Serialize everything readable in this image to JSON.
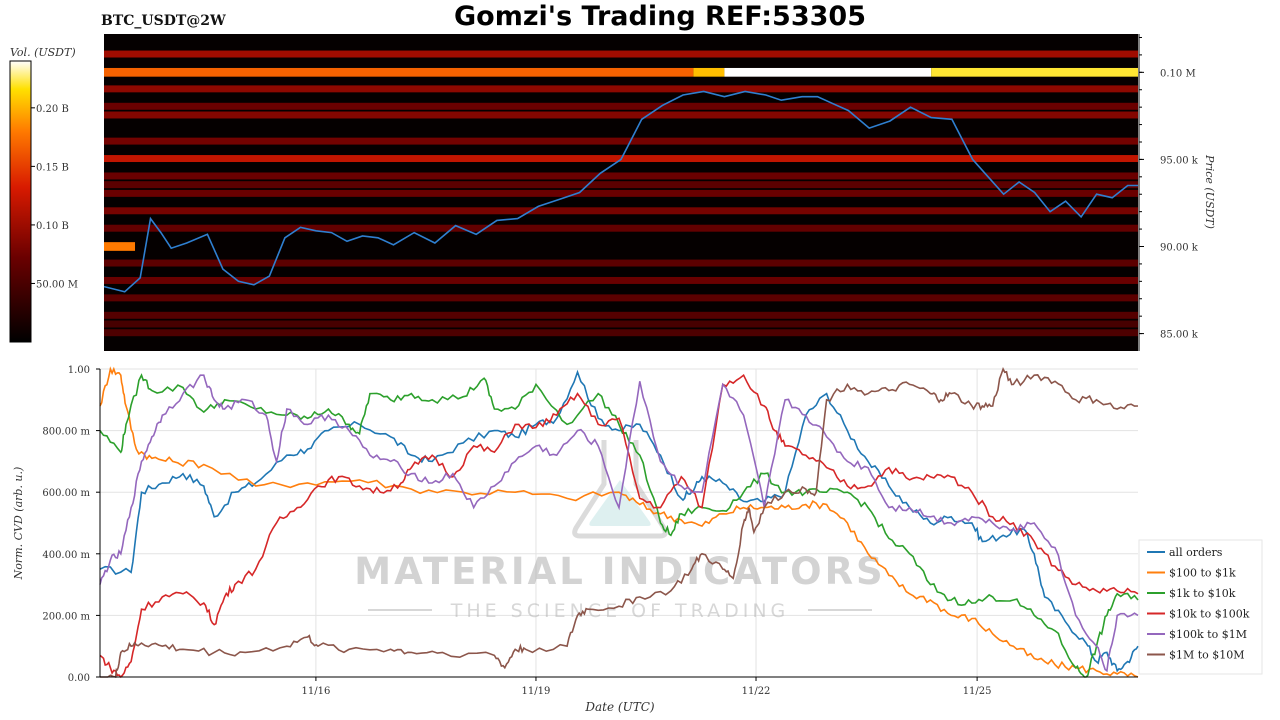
{
  "header": {
    "pair": "BTC_USDT@2W",
    "title": "Gomzi's Trading REF:53305"
  },
  "colors": {
    "heatmap_bg": "#050000",
    "price_line": "#2f7fd0",
    "series": [
      "#1f77b4",
      "#ff7f0e",
      "#2ca02c",
      "#d62728",
      "#9467bd",
      "#8c564b"
    ]
  },
  "watermark": {
    "line1": "MATERIAL INDICATORS",
    "line2": "THE SCIENCE OF TRADING"
  },
  "chart_data": [
    {
      "type": "heatmap",
      "colorbar_label": "Vol. (USDT)",
      "colorbar_ticks": [
        "0.20 B",
        "0.15 B",
        "0.10 B",
        "50.00 M"
      ],
      "colorbar_tick_values": [
        200000000,
        150000000,
        100000000,
        50000000
      ],
      "colorbar_range": [
        0,
        240000000
      ],
      "ylabel": "Price (USDT)",
      "price_ticks": [
        "0.10 M",
        "95.00 k",
        "90.00 k",
        "85.00 k"
      ],
      "price_tick_values": [
        100000,
        95000,
        90000,
        85000
      ],
      "ylim": [
        84000,
        102200
      ],
      "xlim": [
        "11/13 12:00",
        "11/27 00:00"
      ],
      "bands": [
        {
          "price": 100000,
          "intensity": 0.72,
          "segments": [
            [
              0,
              0.57,
              0.7
            ],
            [
              0.57,
              0.6,
              0.85
            ],
            [
              0.6,
              0.8,
              1.0
            ],
            [
              0.8,
              1.0,
              0.92
            ]
          ]
        },
        {
          "price": 90000,
          "intensity": 0.6,
          "segments": [
            [
              0,
              0.03,
              0.75
            ]
          ]
        },
        {
          "price": 95000,
          "intensity": 0.5
        },
        {
          "price": 101000,
          "intensity": 0.42
        },
        {
          "price": 99000,
          "intensity": 0.38
        },
        {
          "price": 98000,
          "intensity": 0.3
        },
        {
          "price": 97500,
          "intensity": 0.36
        },
        {
          "price": 96000,
          "intensity": 0.32
        },
        {
          "price": 94000,
          "intensity": 0.3
        },
        {
          "price": 93500,
          "intensity": 0.26
        },
        {
          "price": 93000,
          "intensity": 0.3
        },
        {
          "price": 92000,
          "intensity": 0.33
        },
        {
          "price": 91000,
          "intensity": 0.28
        },
        {
          "price": 89000,
          "intensity": 0.26
        },
        {
          "price": 88000,
          "intensity": 0.3
        },
        {
          "price": 87000,
          "intensity": 0.26
        },
        {
          "price": 86000,
          "intensity": 0.24
        },
        {
          "price": 85500,
          "intensity": 0.2
        },
        {
          "price": 85000,
          "intensity": 0.22
        }
      ],
      "price_series": {
        "name": "price",
        "t": [
          0,
          0.02,
          0.035,
          0.045,
          0.055,
          0.065,
          0.08,
          0.1,
          0.115,
          0.13,
          0.145,
          0.16,
          0.175,
          0.19,
          0.205,
          0.22,
          0.235,
          0.25,
          0.265,
          0.28,
          0.3,
          0.32,
          0.34,
          0.36,
          0.38,
          0.4,
          0.42,
          0.44,
          0.46,
          0.48,
          0.5,
          0.52,
          0.54,
          0.56,
          0.58,
          0.6,
          0.62,
          0.64,
          0.655,
          0.675,
          0.69,
          0.705,
          0.72,
          0.74,
          0.76,
          0.78,
          0.8,
          0.82,
          0.84,
          0.855,
          0.87,
          0.885,
          0.9,
          0.915,
          0.93,
          0.945,
          0.96,
          0.975,
          0.99,
          1.0
        ],
        "price": [
          87700,
          87400,
          88200,
          91600,
          90800,
          89900,
          90200,
          90700,
          88700,
          88000,
          87800,
          88300,
          90500,
          91100,
          90900,
          90800,
          90300,
          90600,
          90500,
          90100,
          90800,
          90200,
          91200,
          90700,
          91500,
          91600,
          92300,
          92700,
          93100,
          94200,
          95000,
          97300,
          98100,
          98700,
          98900,
          98600,
          98900,
          98700,
          98400,
          98600,
          98600,
          98200,
          97800,
          96800,
          97200,
          98000,
          97400,
          97300,
          95000,
          94000,
          93000,
          93700,
          93100,
          92000,
          92600,
          91700,
          93000,
          92800,
          93500,
          93500
        ]
      }
    },
    {
      "type": "line",
      "xlabel": "Date (UTC)",
      "ylabel": "Norm. CVD (arb. u.)",
      "x_ticks": [
        "11/16",
        "11/19",
        "11/22",
        "11/25"
      ],
      "x_tick_positions": [
        0.208,
        0.42,
        0.632,
        0.845
      ],
      "y_ticks": [
        "0.00",
        "200.00 m",
        "400.00 m",
        "600.00 m",
        "800.00 m",
        "1.00"
      ],
      "y_tick_values": [
        0,
        0.2,
        0.4,
        0.6,
        0.8,
        1.0
      ],
      "ylim": [
        0,
        1
      ],
      "xlim": [
        0,
        1
      ],
      "legend_position": "right",
      "series": [
        {
          "name": "all orders",
          "t": [
            0,
            0.03,
            0.04,
            0.06,
            0.08,
            0.1,
            0.11,
            0.13,
            0.15,
            0.18,
            0.2,
            0.22,
            0.25,
            0.28,
            0.3,
            0.32,
            0.35,
            0.38,
            0.4,
            0.42,
            0.44,
            0.46,
            0.48,
            0.5,
            0.52,
            0.54,
            0.56,
            0.57,
            0.58,
            0.6,
            0.62,
            0.64,
            0.66,
            0.68,
            0.7,
            0.72,
            0.74,
            0.76,
            0.78,
            0.8,
            0.82,
            0.84,
            0.85,
            0.87,
            0.89,
            0.9,
            0.91,
            0.93,
            0.95,
            0.96,
            0.97,
            0.98,
            0.99,
            1.0
          ],
          "value": [
            0.35,
            0.34,
            0.6,
            0.63,
            0.66,
            0.62,
            0.52,
            0.6,
            0.63,
            0.72,
            0.74,
            0.8,
            0.82,
            0.78,
            0.72,
            0.7,
            0.76,
            0.8,
            0.78,
            0.82,
            0.84,
            0.99,
            0.84,
            0.8,
            0.82,
            0.72,
            0.58,
            0.6,
            0.65,
            0.63,
            0.57,
            0.57,
            0.6,
            0.85,
            0.92,
            0.8,
            0.7,
            0.62,
            0.55,
            0.5,
            0.52,
            0.5,
            0.44,
            0.46,
            0.48,
            0.4,
            0.26,
            0.18,
            0.11,
            0.05,
            0.08,
            0.02,
            0.05,
            0.1
          ]
        },
        {
          "name": "$100 to $1k",
          "t": [
            0,
            0.01,
            0.02,
            0.025,
            0.035,
            0.05,
            0.07,
            0.1,
            0.15,
            0.2,
            0.25,
            0.3,
            0.35,
            0.4,
            0.45,
            0.5,
            0.52,
            0.54,
            0.56,
            0.58,
            0.6,
            0.62,
            0.64,
            0.66,
            0.68,
            0.7,
            0.72,
            0.74,
            0.76,
            0.78,
            0.8,
            0.82,
            0.84,
            0.86,
            0.88,
            0.9,
            0.92,
            0.94,
            0.96,
            0.98,
            1.0
          ],
          "value": [
            0.88,
            1.0,
            0.98,
            0.88,
            0.74,
            0.71,
            0.7,
            0.69,
            0.62,
            0.63,
            0.64,
            0.61,
            0.6,
            0.6,
            0.58,
            0.6,
            0.56,
            0.53,
            0.51,
            0.49,
            0.53,
            0.55,
            0.55,
            0.55,
            0.56,
            0.56,
            0.5,
            0.4,
            0.33,
            0.27,
            0.25,
            0.2,
            0.19,
            0.14,
            0.1,
            0.06,
            0.04,
            0.03,
            0.02,
            0.01,
            0.0
          ]
        },
        {
          "name": "$1k to $10k",
          "t": [
            0,
            0.02,
            0.025,
            0.04,
            0.05,
            0.08,
            0.1,
            0.12,
            0.15,
            0.18,
            0.2,
            0.22,
            0.24,
            0.25,
            0.26,
            0.28,
            0.3,
            0.32,
            0.35,
            0.37,
            0.38,
            0.4,
            0.42,
            0.45,
            0.48,
            0.5,
            0.52,
            0.54,
            0.55,
            0.56,
            0.58,
            0.6,
            0.62,
            0.64,
            0.66,
            0.68,
            0.7,
            0.72,
            0.74,
            0.76,
            0.78,
            0.8,
            0.82,
            0.84,
            0.86,
            0.88,
            0.9,
            0.92,
            0.94,
            0.95,
            0.96,
            0.97,
            0.98,
            1.0
          ],
          "value": [
            0.8,
            0.73,
            0.82,
            0.98,
            0.93,
            0.94,
            0.86,
            0.9,
            0.87,
            0.85,
            0.84,
            0.87,
            0.82,
            0.79,
            0.92,
            0.9,
            0.92,
            0.9,
            0.91,
            0.97,
            0.87,
            0.87,
            0.95,
            0.82,
            0.92,
            0.82,
            0.72,
            0.5,
            0.46,
            0.53,
            0.55,
            0.54,
            0.6,
            0.66,
            0.6,
            0.6,
            0.6,
            0.6,
            0.55,
            0.45,
            0.4,
            0.3,
            0.25,
            0.24,
            0.26,
            0.25,
            0.2,
            0.15,
            0.03,
            0.0,
            0.1,
            0.2,
            0.27,
            0.25
          ]
        },
        {
          "name": "$10k to $100k",
          "t": [
            0,
            0.01,
            0.02,
            0.03,
            0.04,
            0.06,
            0.08,
            0.1,
            0.11,
            0.12,
            0.13,
            0.15,
            0.17,
            0.19,
            0.21,
            0.23,
            0.25,
            0.27,
            0.29,
            0.3,
            0.32,
            0.34,
            0.36,
            0.38,
            0.4,
            0.42,
            0.44,
            0.46,
            0.48,
            0.5,
            0.52,
            0.54,
            0.56,
            0.58,
            0.6,
            0.62,
            0.64,
            0.65,
            0.66,
            0.68,
            0.7,
            0.72,
            0.74,
            0.76,
            0.78,
            0.8,
            0.82,
            0.84,
            0.86,
            0.88,
            0.9,
            0.92,
            0.94,
            0.96,
            0.98,
            1.0
          ],
          "value": [
            0.07,
            0.03,
            0.0,
            0.05,
            0.22,
            0.26,
            0.27,
            0.24,
            0.17,
            0.26,
            0.3,
            0.35,
            0.5,
            0.55,
            0.62,
            0.65,
            0.62,
            0.6,
            0.63,
            0.68,
            0.72,
            0.65,
            0.75,
            0.73,
            0.82,
            0.81,
            0.85,
            0.92,
            0.82,
            0.84,
            0.58,
            0.55,
            0.65,
            0.55,
            0.95,
            0.98,
            0.88,
            0.8,
            0.75,
            0.72,
            0.68,
            0.62,
            0.62,
            0.68,
            0.64,
            0.65,
            0.65,
            0.6,
            0.52,
            0.5,
            0.44,
            0.36,
            0.3,
            0.28,
            0.28,
            0.27
          ]
        },
        {
          "name": "$100k to $1M",
          "t": [
            0,
            0.01,
            0.02,
            0.03,
            0.04,
            0.05,
            0.06,
            0.08,
            0.1,
            0.11,
            0.12,
            0.14,
            0.16,
            0.17,
            0.18,
            0.2,
            0.22,
            0.24,
            0.26,
            0.28,
            0.3,
            0.32,
            0.34,
            0.36,
            0.38,
            0.4,
            0.42,
            0.44,
            0.46,
            0.48,
            0.5,
            0.52,
            0.54,
            0.56,
            0.58,
            0.6,
            0.62,
            0.64,
            0.66,
            0.68,
            0.7,
            0.72,
            0.74,
            0.76,
            0.78,
            0.8,
            0.82,
            0.84,
            0.86,
            0.88,
            0.9,
            0.92,
            0.94,
            0.96,
            0.97,
            0.98,
            1.0
          ],
          "value": [
            0.3,
            0.38,
            0.4,
            0.55,
            0.7,
            0.78,
            0.85,
            0.92,
            0.98,
            0.9,
            0.87,
            0.9,
            0.85,
            0.7,
            0.87,
            0.82,
            0.85,
            0.8,
            0.72,
            0.7,
            0.66,
            0.63,
            0.66,
            0.55,
            0.62,
            0.7,
            0.75,
            0.72,
            0.8,
            0.75,
            0.55,
            0.96,
            0.7,
            0.62,
            0.6,
            0.95,
            0.85,
            0.55,
            0.9,
            0.85,
            0.78,
            0.7,
            0.68,
            0.55,
            0.55,
            0.52,
            0.5,
            0.52,
            0.5,
            0.48,
            0.5,
            0.42,
            0.2,
            0.1,
            0.02,
            0.2,
            0.2
          ]
        },
        {
          "name": "$1M to $10M",
          "t": [
            0,
            0.015,
            0.02,
            0.03,
            0.04,
            0.06,
            0.08,
            0.11,
            0.14,
            0.18,
            0.2,
            0.21,
            0.24,
            0.28,
            0.3,
            0.33,
            0.38,
            0.39,
            0.4,
            0.41,
            0.45,
            0.46,
            0.47,
            0.5,
            0.52,
            0.55,
            0.57,
            0.58,
            0.6,
            0.61,
            0.62,
            0.625,
            0.63,
            0.64,
            0.66,
            0.68,
            0.69,
            0.7,
            0.72,
            0.74,
            0.76,
            0.78,
            0.8,
            0.81,
            0.82,
            0.84,
            0.85,
            0.86,
            0.87,
            0.88,
            0.9,
            0.92,
            0.94,
            0.96,
            0.98,
            1.0
          ],
          "value": [
            0.0,
            0.0,
            0.08,
            0.1,
            0.11,
            0.1,
            0.09,
            0.08,
            0.08,
            0.1,
            0.13,
            0.1,
            0.09,
            0.09,
            0.08,
            0.08,
            0.07,
            0.03,
            0.09,
            0.09,
            0.1,
            0.2,
            0.22,
            0.23,
            0.26,
            0.28,
            0.35,
            0.4,
            0.35,
            0.32,
            0.5,
            0.55,
            0.47,
            0.55,
            0.6,
            0.61,
            0.6,
            0.9,
            0.95,
            0.92,
            0.93,
            0.95,
            0.92,
            0.9,
            0.92,
            0.88,
            0.88,
            0.88,
            1.0,
            0.95,
            0.98,
            0.96,
            0.9,
            0.9,
            0.87,
            0.88
          ]
        }
      ]
    }
  ]
}
